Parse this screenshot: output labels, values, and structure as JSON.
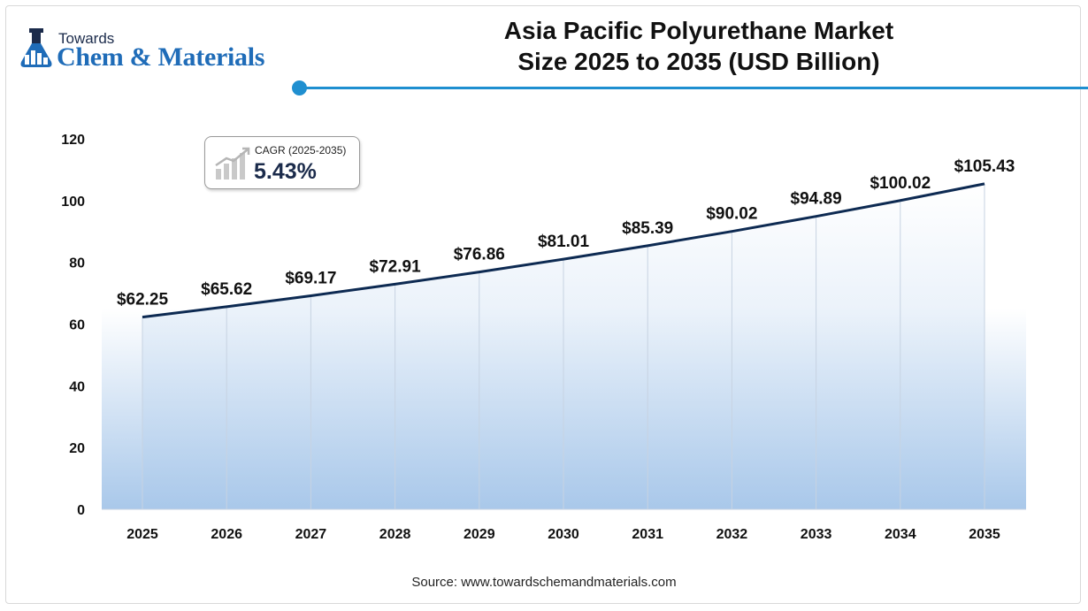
{
  "brand": {
    "towards": "Towards",
    "name": "Chem & Materials",
    "color": "#1f6cb8"
  },
  "header": {
    "title_line1": "Asia Pacific Polyurethane Market",
    "title_line2": "Size 2025 to 2035 (USD Billion)",
    "accent_color": "#1f8fd0"
  },
  "cagr": {
    "label": "CAGR (2025-2035)",
    "value": "5.43%",
    "icon": "growth-chart-icon"
  },
  "source": "Source: www.towardschemandmaterials.com",
  "chart_data": {
    "type": "area",
    "title": "Asia Pacific Polyurethane Market Size 2025 to 2035 (USD Billion)",
    "categories": [
      "2025",
      "2026",
      "2027",
      "2028",
      "2029",
      "2030",
      "2031",
      "2032",
      "2033",
      "2034",
      "2035"
    ],
    "values": [
      62.25,
      65.62,
      69.17,
      72.91,
      76.86,
      81.01,
      85.39,
      90.02,
      94.89,
      100.02,
      105.43
    ],
    "data_labels": [
      "$62.25",
      "$65.62",
      "$69.17",
      "$72.91",
      "$76.86",
      "$81.01",
      "$85.39",
      "$90.02",
      "$94.89",
      "$100.02",
      "$105.43"
    ],
    "yticks": [
      0,
      20,
      40,
      60,
      80,
      100,
      120
    ],
    "ylim": [
      0,
      120
    ],
    "xlabel": "",
    "ylabel": "",
    "grid": "vertical",
    "legend": "none",
    "line_color": "#0d2a52",
    "fill_color_top": "#ffffff",
    "fill_color_bottom": "#a9c8ea"
  }
}
